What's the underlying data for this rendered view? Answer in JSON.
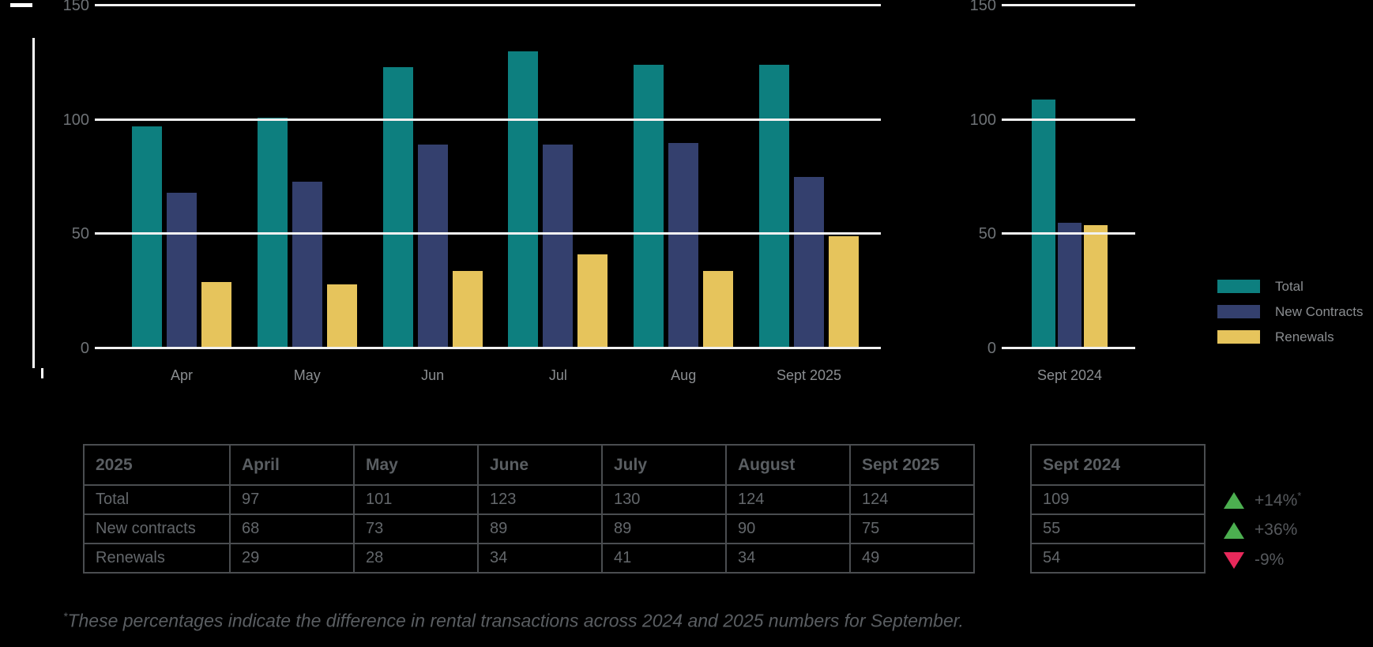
{
  "chart_data": {
    "type": "bar",
    "title": "",
    "xlabel": "",
    "ylabel": "",
    "ylim": [
      0,
      150
    ],
    "yticks": [
      0,
      50,
      100,
      150
    ],
    "grid": "horizontal",
    "legend_position": "right",
    "categories": [
      "Apr",
      "May",
      "Jun",
      "Jul",
      "Aug",
      "Sept 2025"
    ],
    "series": [
      {
        "name": "Total",
        "color": "#0D7F7F",
        "values": [
          97,
          101,
          123,
          130,
          124,
          124
        ]
      },
      {
        "name": "New Contracts",
        "color": "#34406E",
        "values": [
          68,
          73,
          89,
          89,
          90,
          75
        ]
      },
      {
        "name": "Renewals",
        "color": "#E6C45C",
        "values": [
          29,
          28,
          34,
          41,
          34,
          49
        ]
      }
    ],
    "comparison": {
      "category": "Sept 2024",
      "values": [
        109,
        55,
        54
      ]
    }
  },
  "legend": {
    "items": [
      "Total",
      "New Contracts",
      "Renewals"
    ]
  },
  "tables": {
    "year_2025": {
      "headers": [
        "2025",
        "April",
        "May",
        "June",
        "July",
        "August",
        "Sept 2025"
      ],
      "rows": [
        {
          "label": "Total",
          "values": [
            97,
            101,
            123,
            130,
            124,
            124
          ]
        },
        {
          "label": "New contracts",
          "values": [
            68,
            73,
            89,
            89,
            90,
            75
          ]
        },
        {
          "label": "Renewals",
          "values": [
            29,
            28,
            34,
            41,
            34,
            49
          ]
        }
      ]
    },
    "year_2024": {
      "header": "Sept 2024",
      "rows": [
        {
          "value": 109,
          "delta": "+14%",
          "direction": "up",
          "marker": "*"
        },
        {
          "value": 55,
          "delta": "+36%",
          "direction": "up",
          "marker": ""
        },
        {
          "value": 54,
          "delta": "-9%",
          "direction": "down",
          "marker": ""
        }
      ]
    }
  },
  "footnote": {
    "marker": "*",
    "text": "These percentages indicate the difference in rental transactions across 2024 and 2025 numbers for September."
  },
  "colors": {
    "background": "#000000",
    "gridline": "#F1F1F1",
    "tick_text": "#6E7276",
    "axis_label_text": "#8A8D90",
    "table_border": "#4A4D50",
    "table_text": "#63676B",
    "delta_up": "#4CAF50",
    "delta_down": "#E8295B"
  }
}
